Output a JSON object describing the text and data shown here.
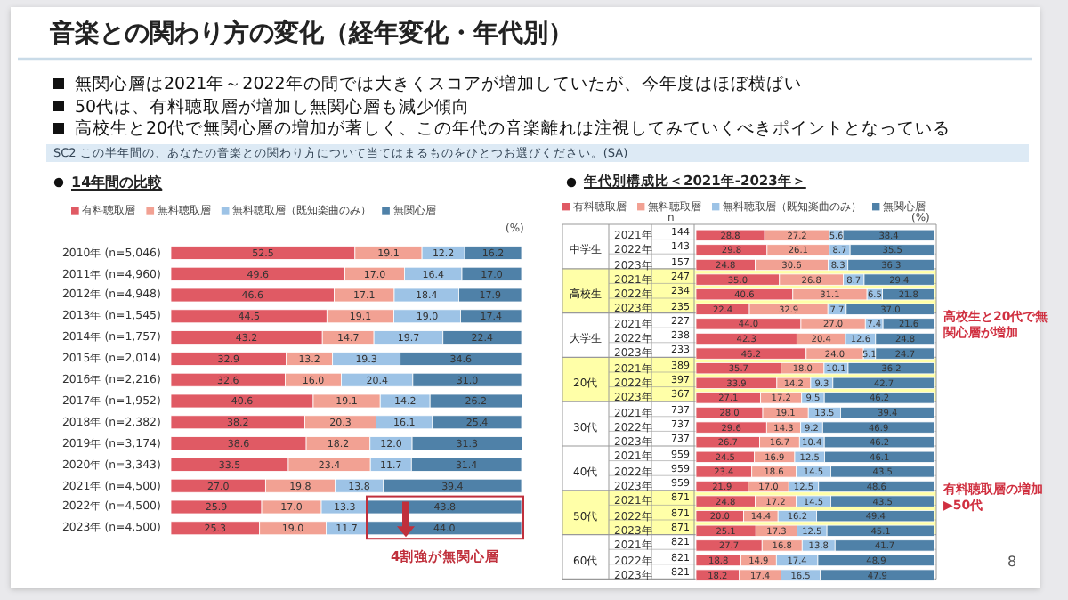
{
  "chart_data": [
    {
      "type": "bar",
      "orientation": "horizontal",
      "stacked": true,
      "tick_labels": "y",
      "legend": "top",
      "xlim": [
        0,
        100
      ],
      "title": "音楽との関わり方の変化（経年変化・年代別）",
      "subtitle": "14年間の比較",
      "categories": [
        "2010年 (n=5,046)",
        "2011年 (n=4,960)",
        "2012年 (n=4,948)",
        "2013年 (n=1,545)",
        "2014年 (n=1,757)",
        "2015年 (n=2,014)",
        "2016年 (n=2,216)",
        "2017年 (n=1,952)",
        "2018年 (n=2,382)",
        "2019年 (n=3,174)",
        "2020年 (n=3,343)",
        "2021年 (n=4,500)",
        "2022年 (n=4,500)",
        "2023年 (n=4,500)"
      ],
      "series": [
        {
          "name": "有料聴取層",
          "color": "#e05a64",
          "values": [
            52.5,
            49.6,
            46.6,
            44.5,
            43.2,
            32.9,
            32.6,
            40.6,
            38.2,
            38.6,
            33.5,
            27.0,
            25.9,
            25.3
          ],
          "value_labels": [
            "52.5",
            "49.6",
            "46.6",
            "44.5",
            "43.2",
            "32.9",
            "32.6",
            "40.6",
            "38.2",
            "38.6",
            "33.5",
            "27.0",
            "25.9",
            "25.3"
          ]
        },
        {
          "name": "無料聴取層",
          "color": "#f2a193",
          "values": [
            19.1,
            17.0,
            17.1,
            19.1,
            14.7,
            13.2,
            16.0,
            19.1,
            20.3,
            18.2,
            23.4,
            19.8,
            17.0,
            19.0
          ],
          "value_labels": [
            "19.1",
            "17.0",
            "17.1",
            "19.1",
            "14.7",
            "13.2",
            "16.0",
            "19.1",
            "20.3",
            "18.2",
            "23.4",
            "19.8",
            "17.0",
            "19.0"
          ]
        },
        {
          "name": "無料聴取層（既知楽曲のみ）",
          "color": "#9dc3e6",
          "values": [
            12.2,
            16.4,
            18.4,
            19.0,
            19.7,
            19.3,
            20.4,
            14.2,
            16.1,
            12.0,
            11.7,
            13.8,
            13.3,
            11.7
          ],
          "value_labels": [
            "12.2",
            "16.4",
            "18.4",
            "19.0",
            "19.7",
            "19.3",
            "20.4",
            "14.2",
            "16.1",
            "12.0",
            "11.7",
            "13.8",
            "13.3",
            "11.7"
          ]
        },
        {
          "name": "無関心層",
          "color": "#4f81a8",
          "values": [
            16.2,
            17.0,
            17.9,
            17.4,
            22.4,
            34.6,
            31.0,
            26.2,
            25.4,
            31.3,
            31.4,
            39.4,
            43.8,
            44.0
          ],
          "value_labels": [
            "16.2",
            "17.0",
            "17.9",
            "17.4",
            "22.4",
            "34.6",
            "31.0",
            "26.2",
            "25.4",
            "31.3",
            "31.4",
            "39.4",
            "43.8",
            "44.0"
          ]
        }
      ],
      "annotations": [
        "無関心層は2021年～2022年の間では大きくスコアが増加していたが、今年度はほぼ横ばい",
        "50代は、有料聴取層が増加し無関心層も減少傾向",
        "高校生と20代で無関心層の増加が著しく、この年代の音楽離れは注視してみていくべきポイントとなっている",
        "SC2 この半年間の、あなたの音楽との関わり方について当てはまるものをひとつお選びください。(SA)",
        "(%)",
        "4割強が無関心層",
        "8"
      ]
    },
    {
      "type": "bar",
      "orientation": "horizontal",
      "stacked": true,
      "tick_labels": "y",
      "legend": "top",
      "xlim": [
        0,
        100
      ],
      "title": "年代別構成比＜2021年-2023年＞",
      "categories": [
        "2021年",
        "2022年",
        "2023年",
        "2021年",
        "2022年",
        "2023年",
        "2021年",
        "2022年",
        "2023年",
        "2021年",
        "2022年",
        "2023年",
        "2021年",
        "2022年",
        "2023年",
        "2021年",
        "2022年",
        "2023年",
        "2021年",
        "2022年",
        "2023年",
        "2021年",
        "2022年",
        "2023年"
      ],
      "series": [
        {
          "name": "有料聴取層",
          "color": "#e05a64",
          "values": [
            28.8,
            29.8,
            24.8,
            35.0,
            40.6,
            22.4,
            44.0,
            42.3,
            46.2,
            35.7,
            33.9,
            27.1,
            28.0,
            29.6,
            26.7,
            24.5,
            23.4,
            21.9,
            24.8,
            20.0,
            25.1,
            27.7,
            18.8,
            18.2
          ],
          "value_labels": [
            "28.8",
            "29.8",
            "24.8",
            "35.0",
            "40.6",
            "22.4",
            "44.0",
            "42.3",
            "46.2",
            "35.7",
            "33.9",
            "27.1",
            "28.0",
            "29.6",
            "26.7",
            "24.5",
            "23.4",
            "21.9",
            "24.8",
            "20.0",
            "25.1",
            "27.7",
            "18.8",
            "18.2"
          ]
        },
        {
          "name": "無料聴取層",
          "color": "#f2a193",
          "values": [
            27.2,
            26.1,
            30.6,
            26.8,
            31.1,
            32.9,
            27.0,
            20.4,
            24.0,
            18.0,
            14.2,
            17.2,
            19.1,
            14.3,
            16.7,
            16.9,
            18.6,
            17.0,
            17.2,
            14.4,
            17.3,
            16.8,
            14.9,
            17.4
          ],
          "value_labels": [
            "27.2",
            "26.1",
            "30.6",
            "26.8",
            "31.1",
            "32.9",
            "27.0",
            "20.4",
            "24.0",
            "18.0",
            "14.2",
            "17.2",
            "19.1",
            "14.3",
            "16.7",
            "16.9",
            "18.6",
            "17.0",
            "17.2",
            "14.4",
            "17.3",
            "16.8",
            "14.9",
            "17.4"
          ]
        },
        {
          "name": "無料聴取層（既知楽曲のみ）",
          "color": "#9dc3e6",
          "values": [
            5.6,
            8.7,
            8.3,
            8.7,
            6.5,
            7.7,
            7.4,
            12.6,
            5.1,
            10.1,
            9.3,
            9.5,
            13.5,
            9.2,
            10.4,
            12.5,
            14.5,
            12.5,
            14.5,
            16.2,
            12.5,
            13.8,
            17.4,
            16.5
          ],
          "value_labels": [
            "5.6",
            "8.7",
            "8.3",
            "8.7",
            "6.5",
            "7.7",
            "7.4",
            "12.6",
            "5.1",
            "10.1",
            "9.3",
            "9.5",
            "13.5",
            "9.2",
            "10.4",
            "12.5",
            "14.5",
            "12.5",
            "14.5",
            "16.2",
            "12.5",
            "13.8",
            "17.4",
            "16.5"
          ]
        },
        {
          "name": "無関心層",
          "color": "#4f81a8",
          "values": [
            38.4,
            35.5,
            36.3,
            29.4,
            21.8,
            37.0,
            21.6,
            24.8,
            24.7,
            36.2,
            42.7,
            46.2,
            39.4,
            46.9,
            46.2,
            46.1,
            43.5,
            48.6,
            43.5,
            49.4,
            45.1,
            41.7,
            48.9,
            47.9
          ],
          "value_labels": [
            "38.4",
            "35.5",
            "36.3",
            "29.4",
            "21.8",
            "37.0",
            "21.6",
            "24.8",
            "24.7",
            "36.2",
            "42.7",
            "46.2",
            "39.4",
            "46.9",
            "46.2",
            "46.1",
            "43.5",
            "48.6",
            "43.5",
            "49.4",
            "45.1",
            "41.7",
            "48.9",
            "47.9"
          ]
        }
      ],
      "annotations": [
        "n",
        "(%)",
        "中学生",
        "高校生",
        "大学生",
        "20代",
        "30代",
        "40代",
        "50代",
        "60代",
        "144",
        "143",
        "157",
        "247",
        "234",
        "235",
        "227",
        "238",
        "233",
        "389",
        "397",
        "367",
        "737",
        "737",
        "737",
        "959",
        "959",
        "959",
        "871",
        "871",
        "871",
        "821",
        "821",
        "821",
        "高校生と20代で無関心層が増加",
        "有料聴取層の増加 ▶50代"
      ]
    }
  ]
}
